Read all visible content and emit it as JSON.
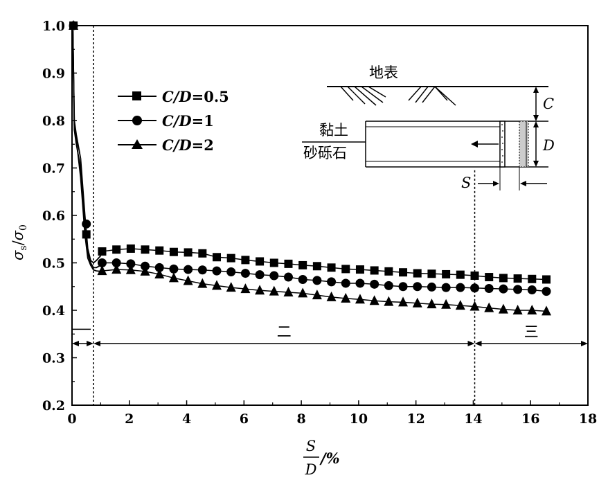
{
  "chart_data": {
    "type": "line",
    "xlabel": {
      "numerator": "S",
      "denominator": "D",
      "unit": "/%"
    },
    "ylabel": {
      "numerator": "σ",
      "numerator_sub": "s",
      "sep": "/",
      "denominator": "σ",
      "denominator_sub": "0"
    },
    "xlim": [
      0,
      18
    ],
    "ylim": [
      0.2,
      1.0
    ],
    "xticks": [
      "0",
      "2",
      "4",
      "6",
      "8",
      "10",
      "12",
      "14",
      "16",
      "18"
    ],
    "yticks": [
      "0.2",
      "0.3",
      "0.4",
      "0.5",
      "0.6",
      "0.7",
      "0.8",
      "0.9",
      "1.0"
    ],
    "grid": false,
    "legend_position": "upper-left",
    "series": [
      {
        "name": "C/D=0.5",
        "name_italic": "C/D",
        "name_value": "=0.5",
        "marker": "square",
        "x": [
          0.05,
          0.5,
          1.05,
          1.55,
          2.05,
          2.55,
          3.05,
          3.55,
          4.05,
          4.55,
          5.05,
          5.55,
          6.05,
          6.55,
          7.05,
          7.55,
          8.05,
          8.55,
          9.05,
          9.55,
          10.05,
          10.55,
          11.05,
          11.55,
          12.05,
          12.55,
          13.05,
          13.55,
          14.05,
          14.55,
          15.05,
          15.55,
          16.05,
          16.55
        ],
        "y": [
          1.0,
          0.56,
          0.524,
          0.528,
          0.53,
          0.528,
          0.526,
          0.523,
          0.522,
          0.52,
          0.512,
          0.51,
          0.506,
          0.503,
          0.5,
          0.498,
          0.495,
          0.493,
          0.49,
          0.487,
          0.486,
          0.484,
          0.482,
          0.48,
          0.478,
          0.477,
          0.476,
          0.475,
          0.473,
          0.47,
          0.468,
          0.467,
          0.466,
          0.465
        ]
      },
      {
        "name": "C/D=1",
        "name_italic": "C/D",
        "name_value": "=1",
        "marker": "circle",
        "x": [
          0.05,
          0.5,
          1.05,
          1.55,
          2.05,
          2.55,
          3.05,
          3.55,
          4.05,
          4.55,
          5.05,
          5.55,
          6.05,
          6.55,
          7.05,
          7.55,
          8.05,
          8.55,
          9.05,
          9.55,
          10.05,
          10.55,
          11.05,
          11.55,
          12.05,
          12.55,
          13.05,
          13.55,
          14.05,
          14.55,
          15.05,
          15.55,
          16.05,
          16.55
        ],
        "y": [
          1.0,
          0.582,
          0.5,
          0.5,
          0.498,
          0.493,
          0.49,
          0.487,
          0.486,
          0.485,
          0.483,
          0.481,
          0.478,
          0.475,
          0.473,
          0.47,
          0.465,
          0.463,
          0.46,
          0.457,
          0.457,
          0.455,
          0.452,
          0.45,
          0.45,
          0.449,
          0.448,
          0.448,
          0.447,
          0.446,
          0.445,
          0.444,
          0.443,
          0.44
        ]
      },
      {
        "name": "C/D=2",
        "name_italic": "C/D",
        "name_value": "=2",
        "marker": "triangle",
        "x": [
          0.05,
          1.05,
          1.55,
          2.05,
          2.55,
          3.05,
          3.55,
          4.05,
          4.55,
          5.05,
          5.55,
          6.05,
          6.55,
          7.05,
          7.55,
          8.05,
          8.55,
          9.05,
          9.55,
          10.05,
          10.55,
          11.05,
          11.55,
          12.05,
          12.55,
          13.05,
          13.55,
          14.05,
          14.55,
          15.05,
          15.55,
          16.05,
          16.55
        ],
        "y": [
          1.0,
          0.483,
          0.486,
          0.485,
          0.482,
          0.476,
          0.468,
          0.462,
          0.456,
          0.452,
          0.448,
          0.445,
          0.442,
          0.44,
          0.438,
          0.436,
          0.432,
          0.428,
          0.425,
          0.423,
          0.42,
          0.418,
          0.417,
          0.415,
          0.413,
          0.412,
          0.41,
          0.408,
          0.405,
          0.402,
          0.4,
          0.4,
          0.398
        ]
      }
    ],
    "drop_curves": [
      {
        "x": [
          0.03,
          0.08,
          0.15,
          0.3,
          0.45,
          0.55,
          0.65,
          0.75,
          0.85,
          1.0
        ],
        "y": [
          0.99,
          0.8,
          0.77,
          0.72,
          0.6,
          0.53,
          0.505,
          0.5,
          0.505,
          0.515
        ]
      },
      {
        "x": [
          0.03,
          0.08,
          0.15,
          0.3,
          0.45,
          0.55,
          0.65,
          0.75,
          0.85,
          1.0
        ],
        "y": [
          0.99,
          0.78,
          0.75,
          0.7,
          0.57,
          0.52,
          0.5,
          0.49,
          0.49,
          0.495
        ]
      },
      {
        "x": [
          0.03,
          0.08,
          0.15,
          0.3,
          0.45,
          0.55,
          0.65,
          0.75,
          0.85,
          1.0
        ],
        "y": [
          0.99,
          0.79,
          0.76,
          0.68,
          0.56,
          0.51,
          0.495,
          0.485,
          0.483,
          0.482
        ]
      }
    ],
    "stage_boundaries": [
      0.75,
      14.05
    ],
    "stage_ranges": [
      {
        "label": "",
        "from": 0,
        "to": 0.75
      },
      {
        "label": "二",
        "from": 0.75,
        "to": 14.05
      },
      {
        "label": "三",
        "from": 14.05,
        "to": 18
      }
    ],
    "stage_arrow_y": 0.33,
    "stage_one_tick_y": 0.36,
    "inset": {
      "ground_label": "地表",
      "cover_label": "C",
      "diameter_label": "D",
      "displacement_label": "S",
      "clay_label": "黏土",
      "gravel_label": "砂砾石"
    }
  }
}
